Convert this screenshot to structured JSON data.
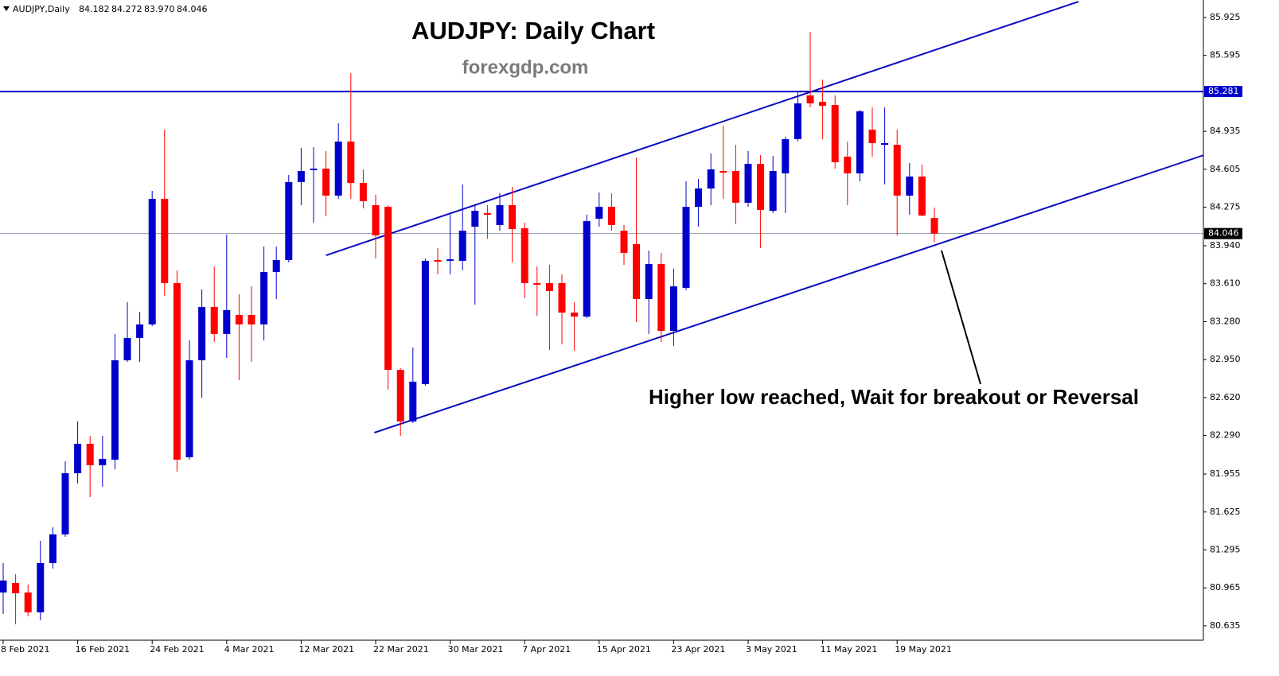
{
  "chart_data": {
    "type": "candlestick",
    "header": {
      "symbol": "AUDJPY,Daily",
      "ohlc_labels": [
        "84.182",
        "84.272",
        "83.970",
        "84.046"
      ]
    },
    "title": "AUDJPY: Daily Chart",
    "subtitle": "forexgdp.com",
    "annotation": "Higher low reached, Wait for breakout or Reversal",
    "categories": [
      "8 Feb 2021",
      null,
      null,
      null,
      null,
      null,
      "16 Feb 2021",
      null,
      null,
      null,
      null,
      null,
      "24 Feb 2021",
      null,
      null,
      null,
      null,
      null,
      "4 Mar 2021",
      null,
      null,
      null,
      null,
      null,
      "12 Mar 2021",
      null,
      null,
      null,
      null,
      null,
      "22 Mar 2021",
      null,
      null,
      null,
      null,
      null,
      "30 Mar 2021",
      null,
      null,
      null,
      null,
      null,
      "7 Apr 2021",
      null,
      null,
      null,
      null,
      null,
      "15 Apr 2021",
      null,
      null,
      null,
      null,
      null,
      "23 Apr 2021",
      null,
      null,
      null,
      null,
      null,
      "3 May 2021",
      null,
      null,
      null,
      null,
      null,
      "11 May 2021",
      null,
      null,
      null,
      null,
      null,
      "19 May 2021",
      null,
      null,
      null
    ],
    "open": [
      80.925,
      81.008,
      80.925,
      80.752,
      81.181,
      81.43,
      81.962,
      82.218,
      82.031,
      82.08,
      82.944,
      83.138,
      83.256,
      84.348,
      83.615,
      82.101,
      82.944,
      83.408,
      83.173,
      83.338,
      83.338,
      83.256,
      83.712,
      83.816,
      84.494,
      84.597,
      84.611,
      84.376,
      84.846,
      84.486,
      84.293,
      84.279,
      82.861,
      82.412,
      82.737,
      83.816,
      83.809,
      83.809,
      84.106,
      84.224,
      84.12,
      84.293,
      84.092,
      83.615,
      83.615,
      83.615,
      83.359,
      83.324,
      84.175,
      84.279,
      84.071,
      83.954,
      83.477,
      83.781,
      83.2,
      83.574,
      84.279,
      84.438,
      84.59,
      84.59,
      84.314,
      84.652,
      84.244,
      84.569,
      84.867,
      85.247,
      85.192,
      85.164,
      84.715,
      84.569,
      84.95,
      84.818,
      84.818,
      84.376,
      84.542,
      84.182
    ],
    "high": [
      81.181,
      81.084,
      80.994,
      81.374,
      81.492,
      82.066,
      82.412,
      82.287,
      82.287,
      83.173,
      83.449,
      83.366,
      84.417,
      84.95,
      83.726,
      83.117,
      83.56,
      83.76,
      84.037,
      83.518,
      83.587,
      83.933,
      83.933,
      84.556,
      84.791,
      84.798,
      84.763,
      85.005,
      85.441,
      84.604,
      84.383,
      84.293,
      82.875,
      83.055,
      83.829,
      83.919,
      84.21,
      84.473,
      84.293,
      84.293,
      84.397,
      84.452,
      84.141,
      83.76,
      83.774,
      83.691,
      83.449,
      84.21,
      84.403,
      84.397,
      84.12,
      84.708,
      83.899,
      83.878,
      83.74,
      84.5,
      84.521,
      84.742,
      84.984,
      84.818,
      84.763,
      84.728,
      84.722,
      84.888,
      85.282,
      85.8,
      85.385,
      85.247,
      84.846,
      85.123,
      85.143,
      85.143,
      84.95,
      84.659,
      84.645,
      84.272
    ],
    "low": [
      80.738,
      80.648,
      80.718,
      80.683,
      81.133,
      81.409,
      81.872,
      81.755,
      81.845,
      81.997,
      82.93,
      82.93,
      83.242,
      83.504,
      81.976,
      82.08,
      82.619,
      83.103,
      82.965,
      82.771,
      82.93,
      83.117,
      83.477,
      83.795,
      84.293,
      84.141,
      84.196,
      84.348,
      84.348,
      84.265,
      83.829,
      82.689,
      82.287,
      82.398,
      82.723,
      83.691,
      83.691,
      83.726,
      83.428,
      84.002,
      84.071,
      83.795,
      83.484,
      83.331,
      83.034,
      83.083,
      83.027,
      83.311,
      84.106,
      84.071,
      83.774,
      83.276,
      83.173,
      83.103,
      83.069,
      83.553,
      84.106,
      84.293,
      84.348,
      84.127,
      84.279,
      83.919,
      84.224,
      84.224,
      84.846,
      85.143,
      84.867,
      84.611,
      84.293,
      84.5,
      84.715,
      84.473,
      84.03,
      84.21,
      84.196,
      83.97
    ],
    "close": [
      81.029,
      80.918,
      80.752,
      81.181,
      81.43,
      81.962,
      82.218,
      82.031,
      82.087,
      82.944,
      83.138,
      83.256,
      84.348,
      83.615,
      82.08,
      82.944,
      83.408,
      83.173,
      83.38,
      83.256,
      83.256,
      83.712,
      83.816,
      84.494,
      84.59,
      84.611,
      84.376,
      84.846,
      84.486,
      84.328,
      84.03,
      82.861,
      82.412,
      82.758,
      83.809,
      83.802,
      83.822,
      84.071,
      84.244,
      84.21,
      84.293,
      84.085,
      83.615,
      83.601,
      83.546,
      83.359,
      83.324,
      84.154,
      84.279,
      84.12,
      83.878,
      83.477,
      83.781,
      83.2,
      83.587,
      84.279,
      84.438,
      84.604,
      84.576,
      84.314,
      84.652,
      84.251,
      84.59,
      84.867,
      85.178,
      85.178,
      85.157,
      84.666,
      84.569,
      85.109,
      84.832,
      84.832,
      84.376,
      84.542,
      84.203,
      84.046
    ],
    "up_color": "#0000cc",
    "down_color": "#ff0000",
    "ylim": [
      80.51,
      86.077
    ],
    "yticks": [
      85.925,
      85.595,
      84.935,
      84.605,
      84.275,
      {
        "value": 83.94,
        "label": "83.940"
      },
      {
        "value": 83.61,
        "label": "83.610"
      },
      {
        "value": 83.28,
        "label": "83.280"
      },
      {
        "value": 82.95,
        "label": "82.950"
      },
      {
        "value": 82.62,
        "label": "82.620"
      },
      {
        "value": 82.29,
        "label": "82.290"
      },
      81.955,
      81.625,
      81.295,
      80.965,
      80.635
    ],
    "level": {
      "value": 85.281,
      "color": "#0000cc"
    },
    "price_line_color": "#8c9cad",
    "trendline_color": "#0a0ac0",
    "trendlines": [
      {
        "x": [
          26,
          86.6
        ],
        "y": [
          83.857,
          86.063
        ]
      },
      {
        "x": [
          29.9,
          96.7
        ],
        "y": [
          82.315,
          84.728
        ]
      }
    ]
  }
}
